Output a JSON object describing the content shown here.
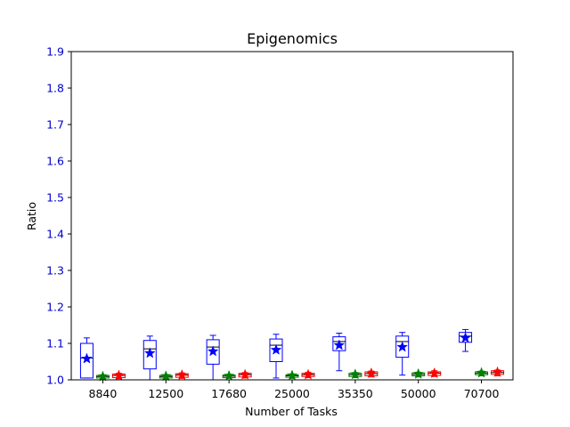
{
  "chart_data": {
    "type": "box",
    "title": "Epigenomics",
    "xlabel": "Number of Tasks",
    "ylabel": "Ratio",
    "ylim": [
      1.0,
      1.9
    ],
    "yticks": [
      "1.0",
      "1.1",
      "1.2",
      "1.3",
      "1.4",
      "1.5",
      "1.6",
      "1.7",
      "1.8",
      "1.9"
    ],
    "categories": [
      "8840",
      "12500",
      "17680",
      "25000",
      "35350",
      "50000",
      "70700"
    ],
    "grid": false,
    "colors": {
      "axis_text": "#0000cc",
      "blue": "#0000ff",
      "green": "#008000",
      "red": "#ff0000"
    },
    "series": [
      {
        "color": "#0000ff",
        "marker": "star",
        "boxes": [
          {
            "whislo": 1.005,
            "q1": 1.005,
            "med": 1.06,
            "q3": 1.1,
            "whishi": 1.115,
            "mean": 1.058
          },
          {
            "whislo": 1.0,
            "q1": 1.03,
            "med": 1.085,
            "q3": 1.108,
            "whishi": 1.12,
            "mean": 1.073
          },
          {
            "whislo": 1.0,
            "q1": 1.043,
            "med": 1.09,
            "q3": 1.11,
            "whishi": 1.122,
            "mean": 1.078
          },
          {
            "whislo": 1.005,
            "q1": 1.05,
            "med": 1.095,
            "q3": 1.112,
            "whishi": 1.125,
            "mean": 1.082
          },
          {
            "whislo": 1.025,
            "q1": 1.08,
            "med": 1.105,
            "q3": 1.118,
            "whishi": 1.128,
            "mean": 1.095
          },
          {
            "whislo": 1.013,
            "q1": 1.062,
            "med": 1.105,
            "q3": 1.12,
            "whishi": 1.13,
            "mean": 1.09
          },
          {
            "whislo": 1.078,
            "q1": 1.103,
            "med": 1.12,
            "q3": 1.13,
            "whishi": 1.138,
            "mean": 1.115
          }
        ]
      },
      {
        "color": "#008000",
        "marker": "star",
        "boxes": [
          {
            "whislo": 1.003,
            "q1": 1.005,
            "med": 1.009,
            "q3": 1.012,
            "whishi": 1.014,
            "mean": 1.009
          },
          {
            "whislo": 1.003,
            "q1": 1.005,
            "med": 1.009,
            "q3": 1.012,
            "whishi": 1.014,
            "mean": 1.01
          },
          {
            "whislo": 1.004,
            "q1": 1.006,
            "med": 1.01,
            "q3": 1.013,
            "whishi": 1.015,
            "mean": 1.011
          },
          {
            "whislo": 1.004,
            "q1": 1.007,
            "med": 1.011,
            "q3": 1.014,
            "whishi": 1.016,
            "mean": 1.012
          },
          {
            "whislo": 1.006,
            "q1": 1.009,
            "med": 1.014,
            "q3": 1.018,
            "whishi": 1.02,
            "mean": 1.015
          },
          {
            "whislo": 1.008,
            "q1": 1.011,
            "med": 1.015,
            "q3": 1.019,
            "whishi": 1.021,
            "mean": 1.016
          },
          {
            "whislo": 1.011,
            "q1": 1.014,
            "med": 1.018,
            "q3": 1.022,
            "whishi": 1.024,
            "mean": 1.019
          }
        ]
      },
      {
        "color": "#ff0000",
        "marker": "star",
        "boxes": [
          {
            "whislo": 1.003,
            "q1": 1.006,
            "med": 1.012,
            "q3": 1.016,
            "whishi": 1.018,
            "mean": 1.012
          },
          {
            "whislo": 1.004,
            "q1": 1.007,
            "med": 1.013,
            "q3": 1.017,
            "whishi": 1.019,
            "mean": 1.013
          },
          {
            "whislo": 1.005,
            "q1": 1.008,
            "med": 1.014,
            "q3": 1.018,
            "whishi": 1.02,
            "mean": 1.014
          },
          {
            "whislo": 1.006,
            "q1": 1.009,
            "med": 1.014,
            "q3": 1.018,
            "whishi": 1.021,
            "mean": 1.014
          },
          {
            "whislo": 1.008,
            "q1": 1.011,
            "med": 1.017,
            "q3": 1.022,
            "whishi": 1.024,
            "mean": 1.018
          },
          {
            "whislo": 1.009,
            "q1": 1.012,
            "med": 1.018,
            "q3": 1.022,
            "whishi": 1.025,
            "mean": 1.018
          },
          {
            "whislo": 1.011,
            "q1": 1.015,
            "med": 1.02,
            "q3": 1.025,
            "whishi": 1.027,
            "mean": 1.021
          }
        ]
      }
    ]
  }
}
